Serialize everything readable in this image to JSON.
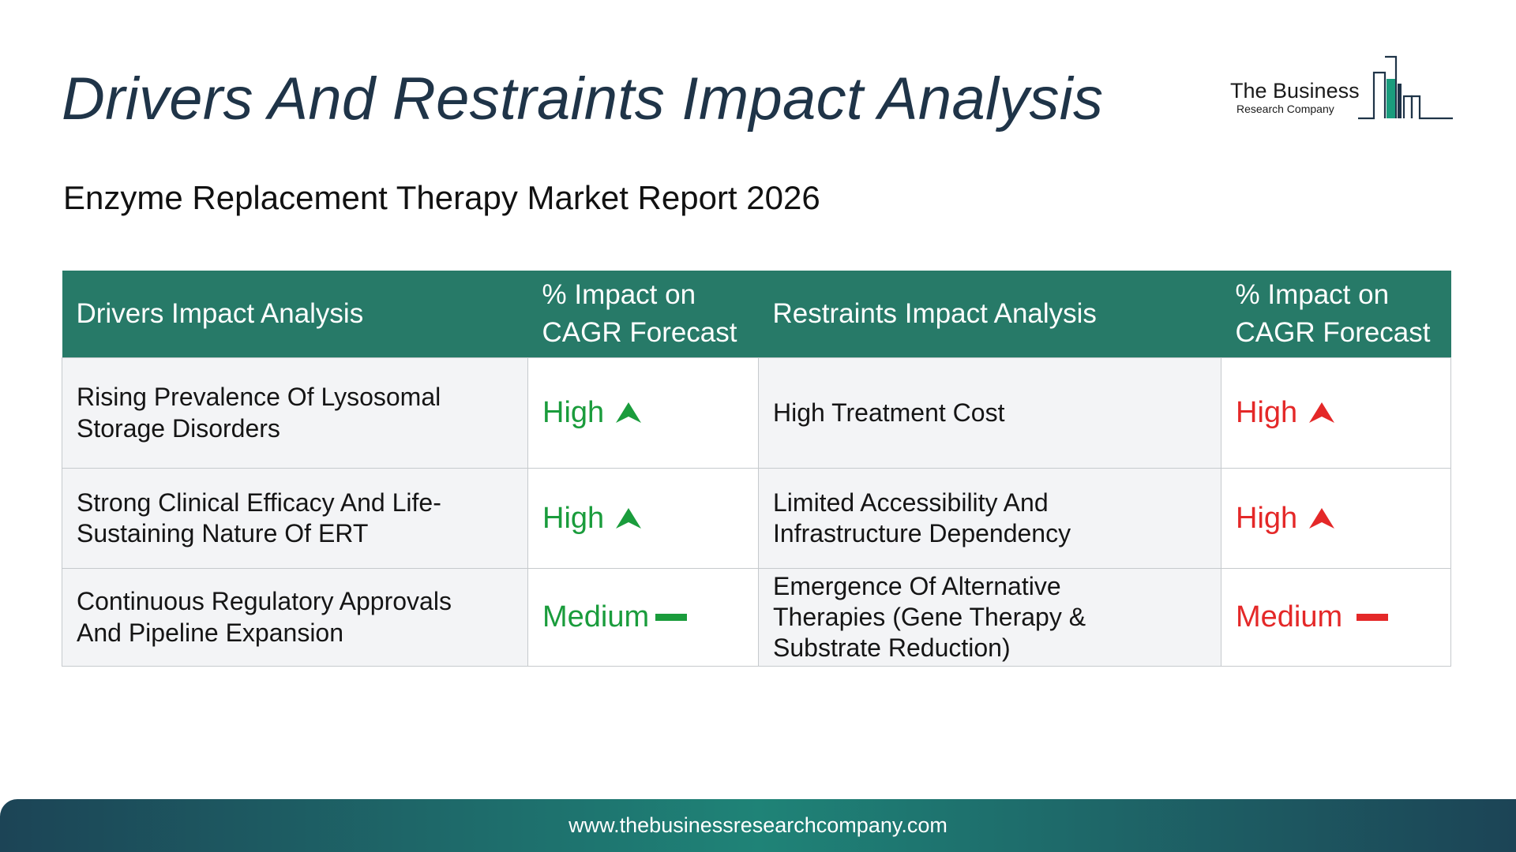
{
  "title": "Drivers And Restraints Impact Analysis",
  "subtitle": "Enzyme Replacement Therapy Market Report 2026",
  "logo": {
    "line1": "The Business",
    "line2": "Research Company",
    "icon": "bar-graph-icon",
    "color": "#1a9c7d"
  },
  "table": {
    "headers": {
      "drivers": "Drivers Impact Analysis",
      "drivers_impact_line1": "% Impact on",
      "drivers_impact_line2": "CAGR Forecast",
      "restraints": "Restraints Impact Analysis",
      "restraints_impact_line1": "% Impact on",
      "restraints_impact_line2": "CAGR Forecast"
    },
    "rows": [
      {
        "driver_line1": "Rising Prevalence Of Lysosomal",
        "driver_line2": "Storage Disorders",
        "driver_impact": "High",
        "driver_icon": "arrow-up-icon",
        "restraint_line1": "High Treatment Cost",
        "restraint_impact": "High",
        "restraint_icon": "arrow-up-icon"
      },
      {
        "driver_line1": "Strong Clinical Efficacy And Life-",
        "driver_line2": "Sustaining Nature Of ERT",
        "driver_impact": "High",
        "driver_icon": "arrow-up-icon",
        "restraint_line1": "Limited Accessibility And",
        "restraint_line2": "Infrastructure Dependency",
        "restraint_impact": "High",
        "restraint_icon": "arrow-up-icon"
      },
      {
        "driver_line1": "Continuous Regulatory Approvals",
        "driver_line2": "And Pipeline Expansion",
        "driver_impact": "Medium",
        "driver_icon": "dash-icon",
        "restraint_line1": "Emergence Of Alternative",
        "restraint_line2": "Therapies (Gene Therapy &",
        "restraint_line3": "Substrate Reduction)",
        "restraint_impact": "Medium",
        "restraint_icon": "dash-icon"
      }
    ],
    "colors": {
      "header_bg": "#277a68",
      "driver_green": "#1a9c3c",
      "restraint_red": "#e42828"
    }
  },
  "footer": {
    "url": "www.thebusinessresearchcompany.com"
  }
}
